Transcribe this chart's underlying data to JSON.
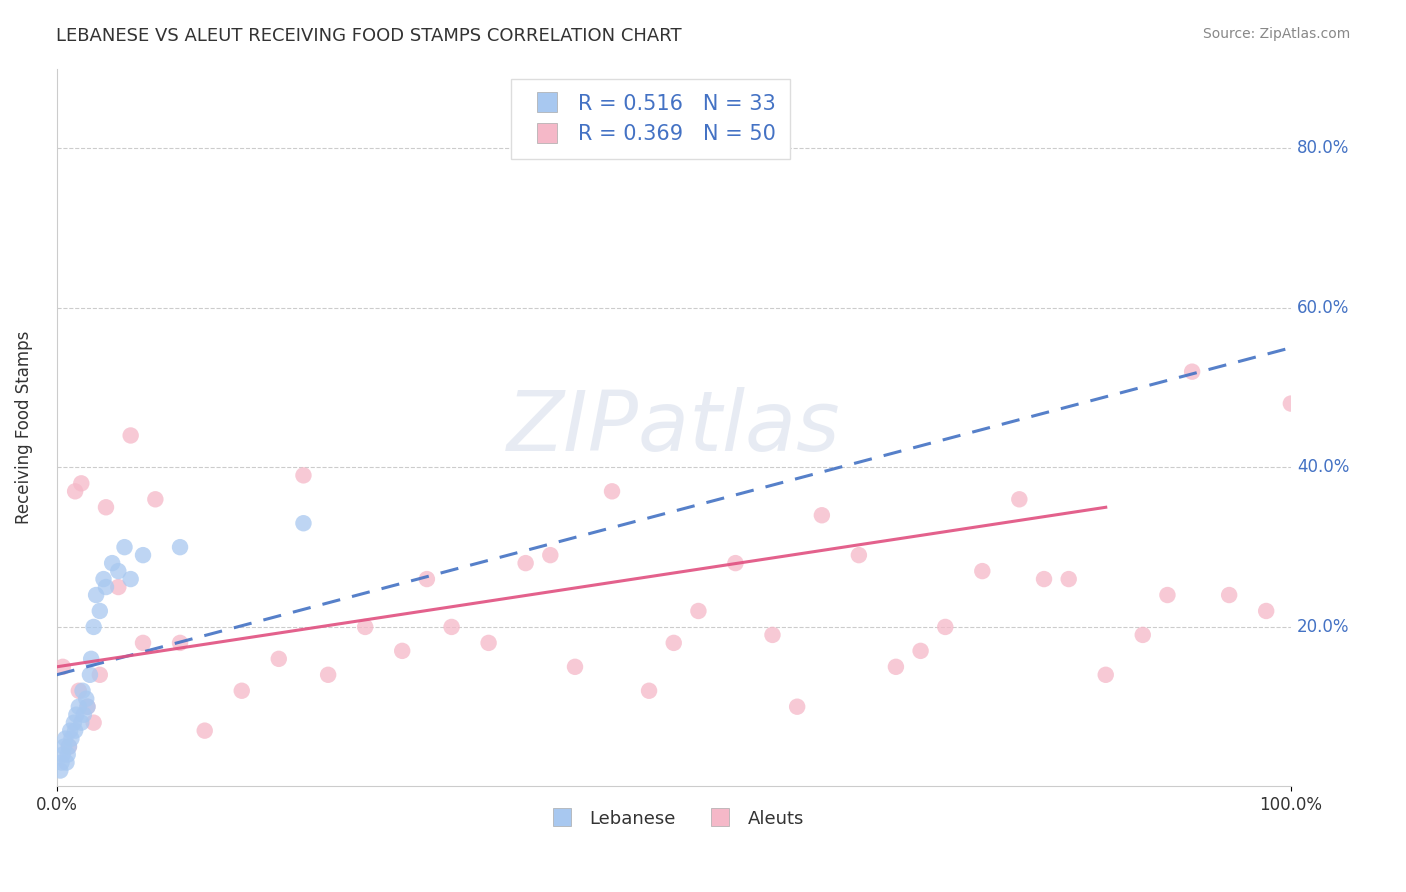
{
  "title": "LEBANESE VS ALEUT RECEIVING FOOD STAMPS CORRELATION CHART",
  "source": "Source: ZipAtlas.com",
  "xlabel": "",
  "ylabel": "Receiving Food Stamps",
  "xlim": [
    0,
    100
  ],
  "ylim": [
    0,
    90
  ],
  "xtick_labels": [
    "0.0%",
    "100.0%"
  ],
  "ytick_positions": [
    20,
    40,
    60,
    80
  ],
  "r_lebanese": 0.516,
  "n_lebanese": 33,
  "r_aleuts": 0.369,
  "n_aleuts": 50,
  "lebanese_color": "#a8c8f0",
  "aleuts_color": "#f5b8c8",
  "lebanese_line_color": "#4472c4",
  "aleuts_line_color": "#e05080",
  "watermark": "ZIPatlas",
  "lebanese_x": [
    0.3,
    0.4,
    0.5,
    0.6,
    0.7,
    0.8,
    0.9,
    1.0,
    1.1,
    1.2,
    1.4,
    1.5,
    1.6,
    1.8,
    2.0,
    2.1,
    2.2,
    2.4,
    2.5,
    2.7,
    2.8,
    3.0,
    3.2,
    3.5,
    3.8,
    4.0,
    4.5,
    5.0,
    5.5,
    6.0,
    7.0,
    10.0,
    20.0
  ],
  "lebanese_y": [
    2,
    3,
    4,
    5,
    6,
    3,
    4,
    5,
    7,
    6,
    8,
    7,
    9,
    10,
    8,
    12,
    9,
    11,
    10,
    14,
    16,
    20,
    24,
    22,
    26,
    25,
    28,
    27,
    30,
    26,
    29,
    30,
    33
  ],
  "aleuts_x": [
    0.5,
    1.0,
    1.5,
    1.8,
    2.0,
    2.5,
    3.0,
    3.5,
    4.0,
    5.0,
    6.0,
    7.0,
    8.0,
    10.0,
    12.0,
    15.0,
    18.0,
    20.0,
    22.0,
    25.0,
    28.0,
    30.0,
    32.0,
    35.0,
    38.0,
    40.0,
    42.0,
    45.0,
    48.0,
    50.0,
    52.0,
    55.0,
    58.0,
    60.0,
    62.0,
    65.0,
    68.0,
    70.0,
    72.0,
    75.0,
    78.0,
    80.0,
    82.0,
    85.0,
    88.0,
    90.0,
    92.0,
    95.0,
    98.0,
    100.0
  ],
  "aleuts_y": [
    15,
    5,
    37,
    12,
    38,
    10,
    8,
    14,
    35,
    25,
    44,
    18,
    36,
    18,
    7,
    12,
    16,
    39,
    14,
    20,
    17,
    26,
    20,
    18,
    28,
    29,
    15,
    37,
    12,
    18,
    22,
    28,
    19,
    10,
    34,
    29,
    15,
    17,
    20,
    27,
    36,
    26,
    26,
    14,
    19,
    24,
    52,
    24,
    22,
    48
  ],
  "leb_line_x": [
    0,
    100
  ],
  "leb_line_y": [
    14,
    55
  ],
  "ale_line_x": [
    0,
    85
  ],
  "ale_line_y": [
    15,
    35
  ]
}
